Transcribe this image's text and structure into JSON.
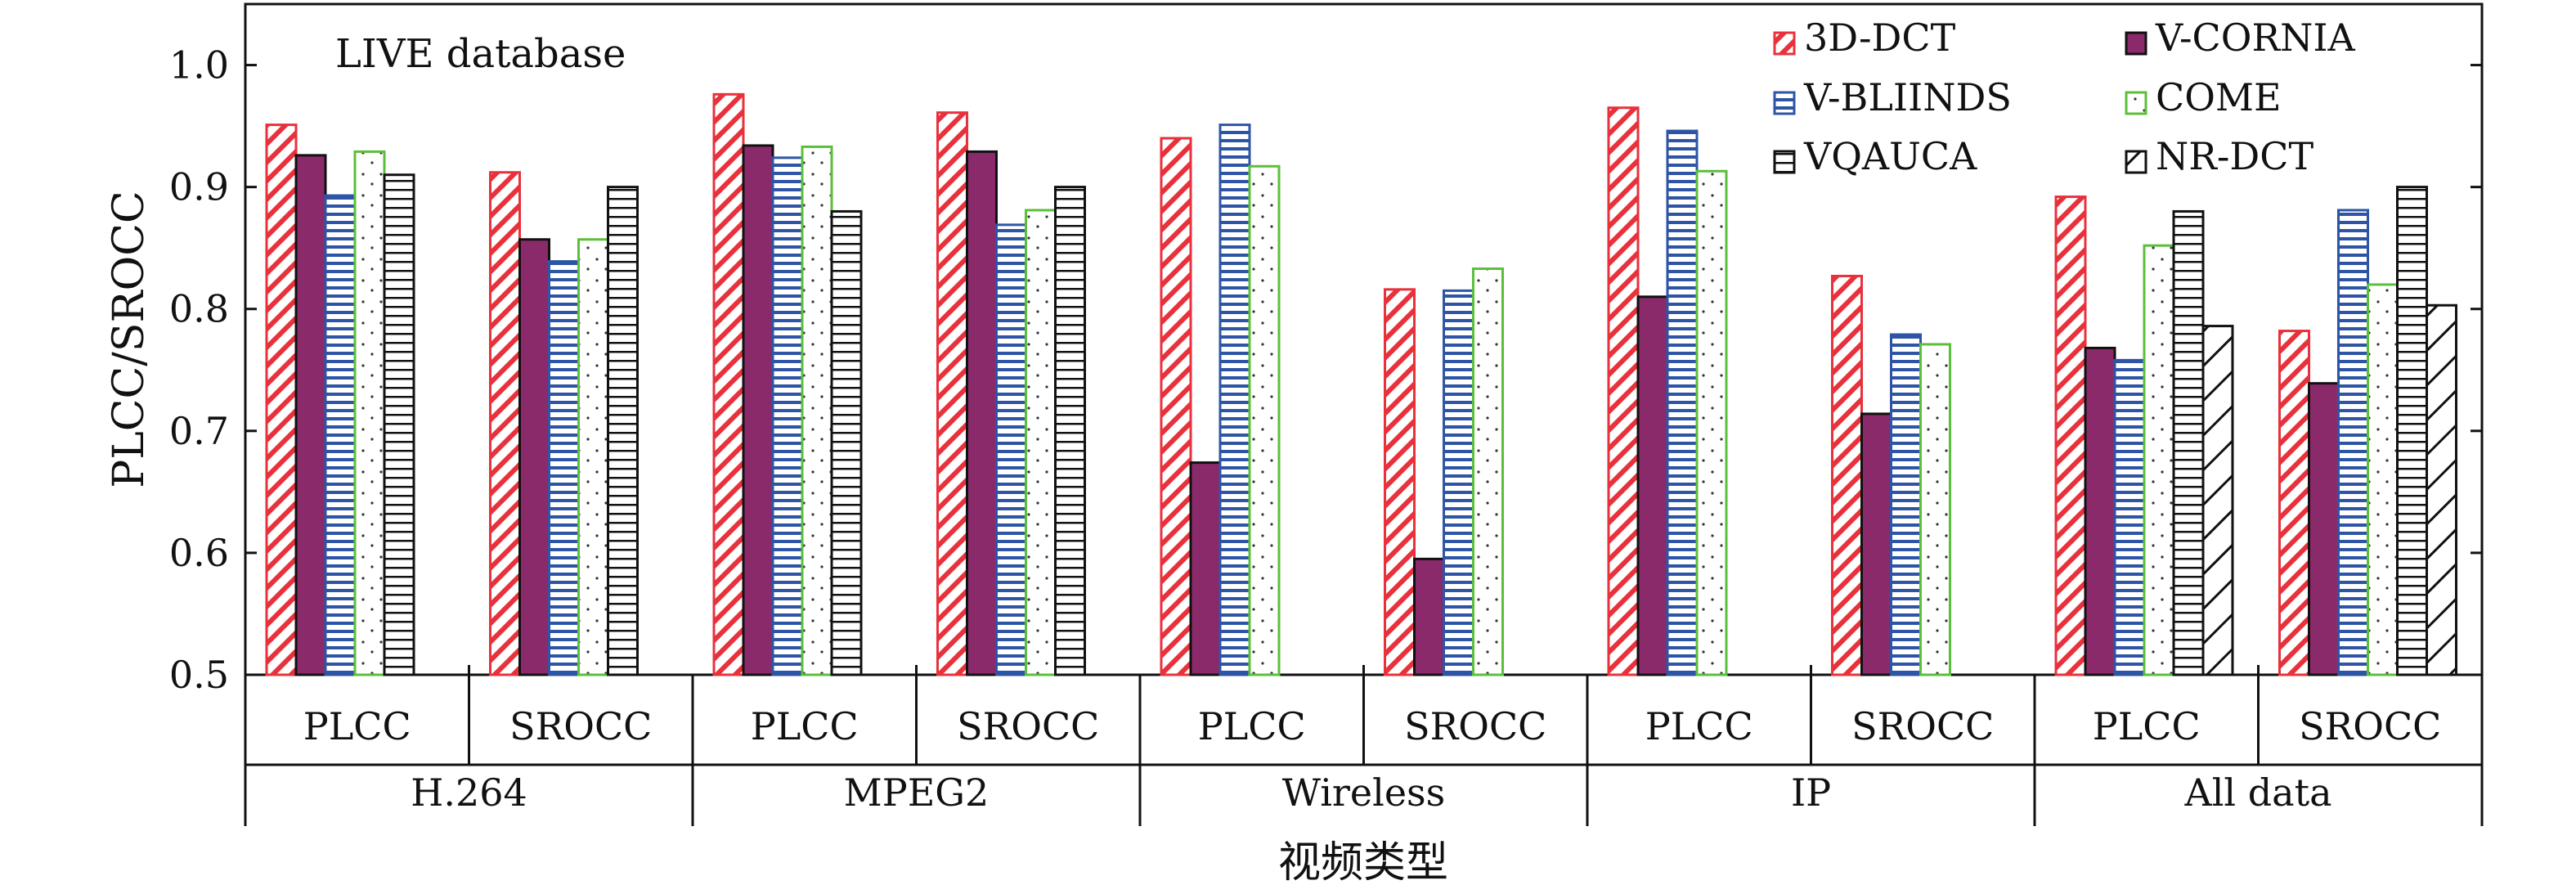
{
  "chart_data": {
    "type": "bar",
    "annotation": "LIVE database",
    "ylabel": "PLCC/SROCC",
    "xlabel": "视频类型",
    "ylim": [
      0.5,
      1.05
    ],
    "yticks": [
      "0.5",
      "0.6",
      "0.7",
      "0.8",
      "0.9",
      "1.0"
    ],
    "groups": [
      "H.264",
      "MPEG2",
      "Wireless",
      "IP",
      "All data"
    ],
    "subgroups": [
      "PLCC",
      "SROCC"
    ],
    "legend_position": "top-right",
    "series": [
      {
        "name": "3D-DCT",
        "pattern": "diagonal",
        "color": "#e8313b",
        "values": [
          0.951,
          0.912,
          0.976,
          0.961,
          0.94,
          0.816,
          0.965,
          0.827,
          0.892,
          0.782
        ]
      },
      {
        "name": "V-CORNIA",
        "pattern": "solid",
        "color": "#8b2a6a",
        "values": [
          0.926,
          0.857,
          0.934,
          0.929,
          0.674,
          0.595,
          0.81,
          0.714,
          0.768,
          0.739
        ]
      },
      {
        "name": "V-BLIINDS",
        "pattern": "hlines",
        "color": "#2e55a5",
        "values": [
          0.893,
          0.839,
          0.924,
          0.869,
          0.951,
          0.815,
          0.946,
          0.779,
          0.758,
          0.881
        ]
      },
      {
        "name": "COME",
        "pattern": "dots",
        "color": "#5cbf3a",
        "values": [
          0.929,
          0.857,
          0.933,
          0.881,
          0.917,
          0.833,
          0.913,
          0.771,
          0.852,
          0.82
        ]
      },
      {
        "name": "VQAUCA",
        "pattern": "hlines",
        "color": "#111111",
        "values": [
          0.91,
          0.9,
          0.88,
          0.9,
          null,
          null,
          null,
          null,
          0.88,
          0.9
        ]
      },
      {
        "name": "NR-DCT",
        "pattern": "diagonal",
        "color": "#111111",
        "values": [
          null,
          null,
          null,
          null,
          null,
          null,
          null,
          null,
          0.786,
          0.803
        ]
      }
    ]
  }
}
